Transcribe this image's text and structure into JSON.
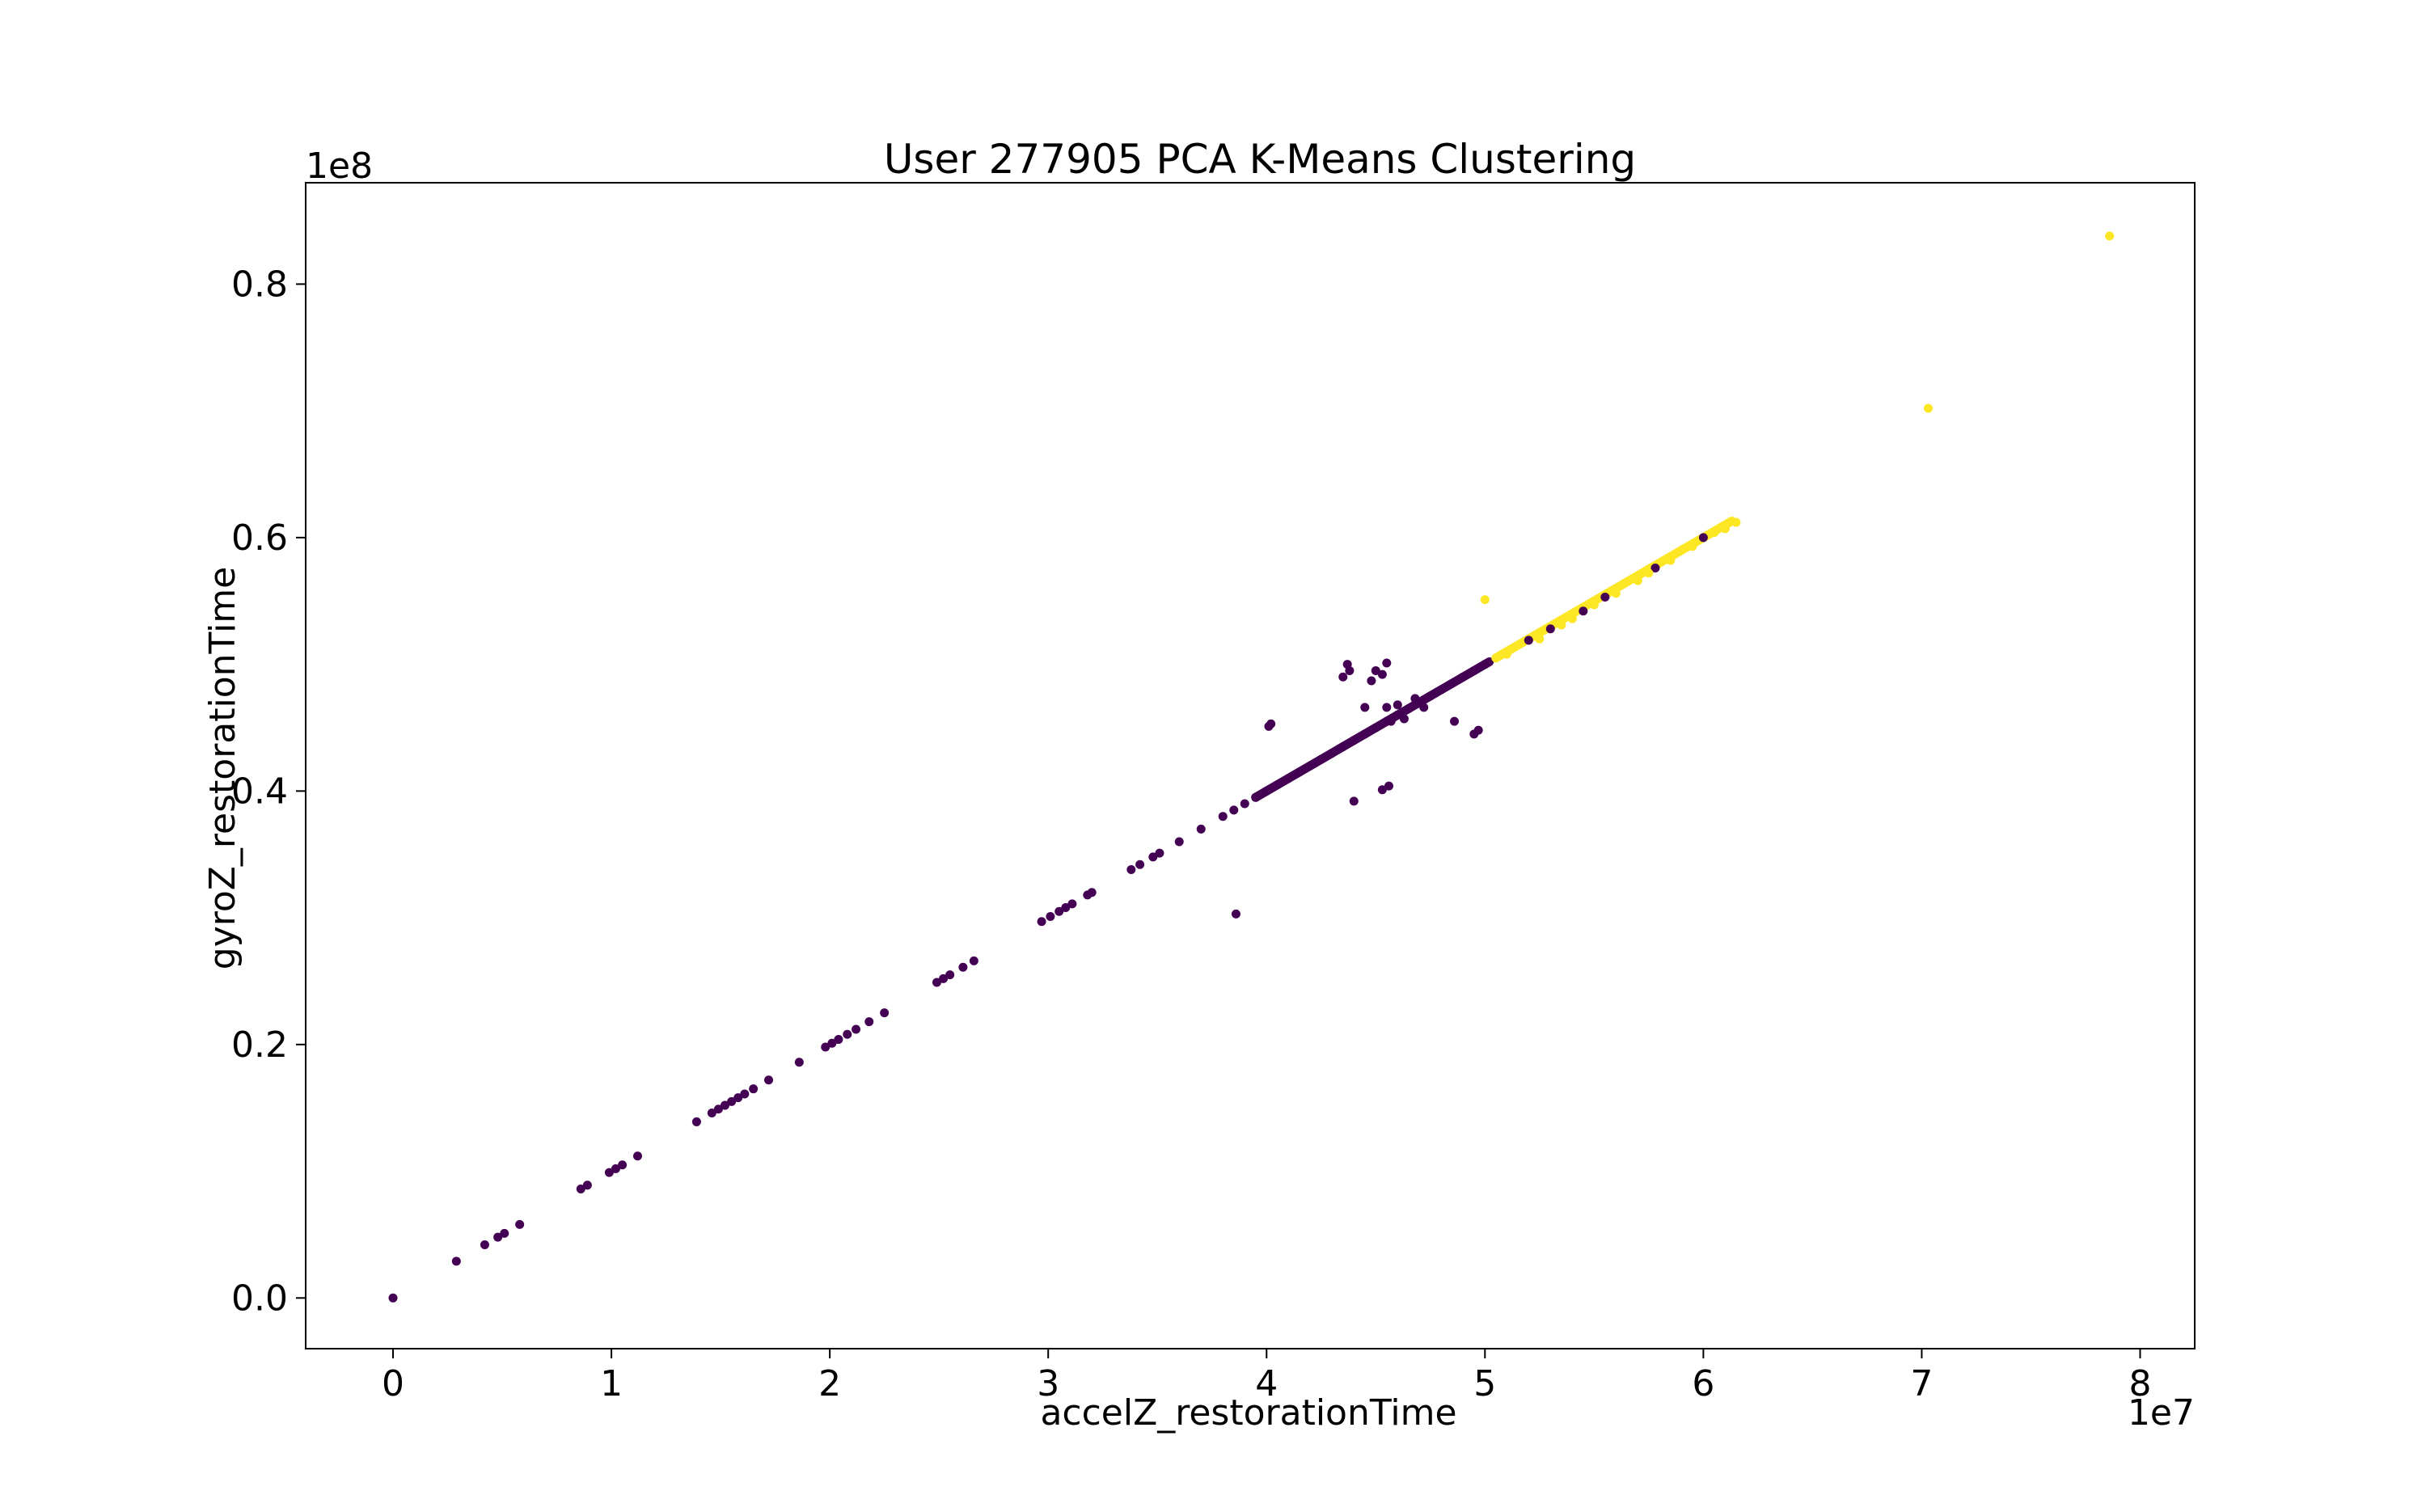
{
  "chart_data": {
    "type": "scatter",
    "title": "User 277905 PCA K-Means Clustering",
    "xlabel": "accelZ_restorationTime",
    "ylabel": "gyroZ_restorationTime",
    "x_multiplier": "1e7",
    "y_multiplier": "1e8",
    "xlim": [
      -0.4,
      8.25
    ],
    "ylim": [
      -0.04,
      0.88
    ],
    "x_ticks": [
      0,
      1,
      2,
      3,
      4,
      5,
      6,
      7,
      8
    ],
    "x_tick_labels": [
      "0",
      "1",
      "2",
      "3",
      "4",
      "5",
      "6",
      "7",
      "8"
    ],
    "y_ticks": [
      0.0,
      0.2,
      0.4,
      0.6,
      0.8
    ],
    "y_tick_labels": [
      "0.0",
      "0.2",
      "0.4",
      "0.6",
      "0.8"
    ],
    "grid": false,
    "colors": {
      "cluster_0": "#440154",
      "cluster_1": "#fde725",
      "axes": "#000000"
    },
    "series": [
      {
        "cluster": 0,
        "color": "#440154",
        "points": [
          [
            0.0,
            0.0
          ],
          [
            0.29,
            0.029
          ],
          [
            0.42,
            0.042
          ],
          [
            0.48,
            0.048
          ],
          [
            0.51,
            0.051
          ],
          [
            0.58,
            0.058
          ],
          [
            0.86,
            0.086
          ],
          [
            0.89,
            0.089
          ],
          [
            0.99,
            0.099
          ],
          [
            1.02,
            0.102
          ],
          [
            1.05,
            0.105
          ],
          [
            1.12,
            0.112
          ],
          [
            1.39,
            0.139
          ],
          [
            1.46,
            0.146
          ],
          [
            1.49,
            0.149
          ],
          [
            1.52,
            0.152
          ],
          [
            1.55,
            0.155
          ],
          [
            1.58,
            0.158
          ],
          [
            1.61,
            0.161
          ],
          [
            1.65,
            0.165
          ],
          [
            1.72,
            0.172
          ],
          [
            1.86,
            0.186
          ],
          [
            1.98,
            0.198
          ],
          [
            2.01,
            0.201
          ],
          [
            2.04,
            0.204
          ],
          [
            2.08,
            0.208
          ],
          [
            2.12,
            0.212
          ],
          [
            2.18,
            0.218
          ],
          [
            2.25,
            0.225
          ],
          [
            2.49,
            0.249
          ],
          [
            2.52,
            0.252
          ],
          [
            2.55,
            0.255
          ],
          [
            2.61,
            0.261
          ],
          [
            2.66,
            0.266
          ],
          [
            2.97,
            0.297
          ],
          [
            3.01,
            0.301
          ],
          [
            3.05,
            0.305
          ],
          [
            3.08,
            0.308
          ],
          [
            3.11,
            0.311
          ],
          [
            3.18,
            0.318
          ],
          [
            3.2,
            0.32
          ],
          [
            3.38,
            0.338
          ],
          [
            3.42,
            0.342
          ],
          [
            3.48,
            0.348
          ],
          [
            3.51,
            0.351
          ],
          [
            3.6,
            0.36
          ],
          [
            3.7,
            0.37
          ],
          [
            3.8,
            0.38
          ],
          [
            3.85,
            0.385
          ],
          [
            3.9,
            0.39
          ],
          [
            3.95,
            0.395
          ],
          [
            4.0,
            0.4
          ],
          [
            4.05,
            0.405
          ],
          [
            4.1,
            0.41
          ],
          [
            4.15,
            0.415
          ],
          [
            4.2,
            0.42
          ],
          [
            4.25,
            0.425
          ],
          [
            4.3,
            0.43
          ],
          [
            4.35,
            0.435
          ],
          [
            4.4,
            0.44
          ],
          [
            4.45,
            0.445
          ],
          [
            4.5,
            0.45
          ],
          [
            4.55,
            0.455
          ],
          [
            4.6,
            0.46
          ],
          [
            4.65,
            0.465
          ],
          [
            4.7,
            0.47
          ],
          [
            4.75,
            0.475
          ],
          [
            4.8,
            0.48
          ],
          [
            4.85,
            0.485
          ],
          [
            4.9,
            0.49
          ],
          [
            4.95,
            0.495
          ],
          [
            5.0,
            0.5
          ],
          [
            5.2,
            0.519
          ],
          [
            5.3,
            0.528
          ],
          [
            5.45,
            0.542
          ],
          [
            5.55,
            0.553
          ],
          [
            5.78,
            0.576
          ],
          [
            6.0,
            0.6
          ],
          [
            4.02,
            0.453
          ],
          [
            4.01,
            0.451
          ],
          [
            4.35,
            0.49
          ],
          [
            4.37,
            0.5
          ],
          [
            4.38,
            0.495
          ],
          [
            4.45,
            0.466
          ],
          [
            4.4,
            0.392
          ],
          [
            4.5,
            0.495
          ],
          [
            4.48,
            0.487
          ],
          [
            4.53,
            0.492
          ],
          [
            4.55,
            0.501
          ],
          [
            4.55,
            0.466
          ],
          [
            4.6,
            0.468
          ],
          [
            4.62,
            0.462
          ],
          [
            4.57,
            0.455
          ],
          [
            4.53,
            0.401
          ],
          [
            4.56,
            0.404
          ],
          [
            4.63,
            0.457
          ],
          [
            4.68,
            0.473
          ],
          [
            4.72,
            0.466
          ],
          [
            4.86,
            0.455
          ],
          [
            4.95,
            0.445
          ],
          [
            4.97,
            0.448
          ],
          [
            3.86,
            0.303
          ]
        ]
      },
      {
        "cluster": 1,
        "color": "#fde725",
        "points": [
          [
            5.0,
            0.551
          ],
          [
            5.05,
            0.505
          ],
          [
            5.1,
            0.508
          ],
          [
            5.25,
            0.52
          ],
          [
            5.35,
            0.531
          ],
          [
            5.4,
            0.536
          ],
          [
            5.5,
            0.547
          ],
          [
            5.6,
            0.556
          ],
          [
            5.7,
            0.566
          ],
          [
            5.75,
            0.572
          ],
          [
            5.85,
            0.582
          ],
          [
            5.95,
            0.593
          ],
          [
            6.05,
            0.604
          ],
          [
            6.1,
            0.607
          ],
          [
            6.15,
            0.612
          ],
          [
            7.03,
            0.702
          ],
          [
            7.86,
            0.838
          ]
        ]
      }
    ],
    "dense_segments": [
      {
        "cluster": 0,
        "from": [
          3.95,
          0.395
        ],
        "to": [
          5.02,
          0.502
        ]
      },
      {
        "cluster": 1,
        "from": [
          5.05,
          0.505
        ],
        "to": [
          6.13,
          0.613
        ]
      }
    ]
  }
}
